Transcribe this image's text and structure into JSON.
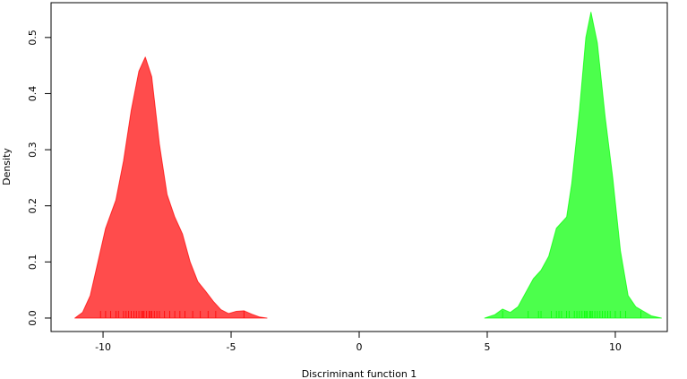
{
  "chart_data": {
    "type": "density",
    "xlabel": "Discriminant function 1",
    "ylabel": "Density",
    "xlim": [
      -12.03,
      12.03
    ],
    "ylim": [
      -0.024,
      0.562
    ],
    "xticks": [
      -10,
      -5,
      0,
      5,
      10
    ],
    "yticks": [
      {
        "value": 0,
        "label": "0.0"
      },
      0.1,
      0.2,
      0.3,
      0.4,
      0.5
    ],
    "series": [
      {
        "color": "#ff0000",
        "x": [
          -11.1,
          -10.8,
          -10.5,
          -10.2,
          -9.9,
          -9.5,
          -9.2,
          -8.9,
          -8.6,
          -8.35,
          -8.1,
          -7.8,
          -7.5,
          -7.2,
          -6.9,
          -6.6,
          -6.3,
          -6.0,
          -5.7,
          -5.4,
          -5.1,
          -4.8,
          -4.5,
          -4.2,
          -3.9,
          -3.6
        ],
        "values": [
          0,
          0.01,
          0.04,
          0.1,
          0.16,
          0.21,
          0.28,
          0.37,
          0.44,
          0.465,
          0.43,
          0.31,
          0.22,
          0.18,
          0.15,
          0.1,
          0.065,
          0.048,
          0.03,
          0.015,
          0.008,
          0.012,
          0.013,
          0.007,
          0.002,
          0
        ],
        "rug": [
          -10.1,
          -9.9,
          -9.7,
          -9.5,
          -9.4,
          -9.2,
          -9.1,
          -9.0,
          -8.9,
          -8.8,
          -8.7,
          -8.6,
          -8.5,
          -8.45,
          -8.4,
          -8.3,
          -8.2,
          -8.15,
          -8.1,
          -8.0,
          -7.9,
          -7.8,
          -7.6,
          -7.4,
          -7.2,
          -7.0,
          -6.8,
          -6.5,
          -6.2,
          -5.9,
          -5.6,
          -4.5
        ]
      },
      {
        "color": "#00ff00",
        "x": [
          4.9,
          5.3,
          5.6,
          5.9,
          6.2,
          6.5,
          6.8,
          7.1,
          7.4,
          7.7,
          7.9,
          8.1,
          8.3,
          8.6,
          8.85,
          9.05,
          9.3,
          9.6,
          9.9,
          10.2,
          10.5,
          10.8,
          11.1,
          11.4,
          11.8
        ],
        "values": [
          0,
          0.006,
          0.016,
          0.01,
          0.02,
          0.045,
          0.07,
          0.085,
          0.11,
          0.16,
          0.17,
          0.18,
          0.24,
          0.37,
          0.5,
          0.545,
          0.49,
          0.36,
          0.25,
          0.12,
          0.04,
          0.02,
          0.012,
          0.004,
          0
        ],
        "rug": [
          5.6,
          6.6,
          7.0,
          7.1,
          7.5,
          7.7,
          7.8,
          7.9,
          8.1,
          8.2,
          8.4,
          8.5,
          8.6,
          8.7,
          8.8,
          8.85,
          8.9,
          9.0,
          9.05,
          9.1,
          9.2,
          9.3,
          9.4,
          9.5,
          9.6,
          9.7,
          9.8,
          10.0,
          10.2,
          10.4,
          11.0
        ]
      }
    ]
  }
}
